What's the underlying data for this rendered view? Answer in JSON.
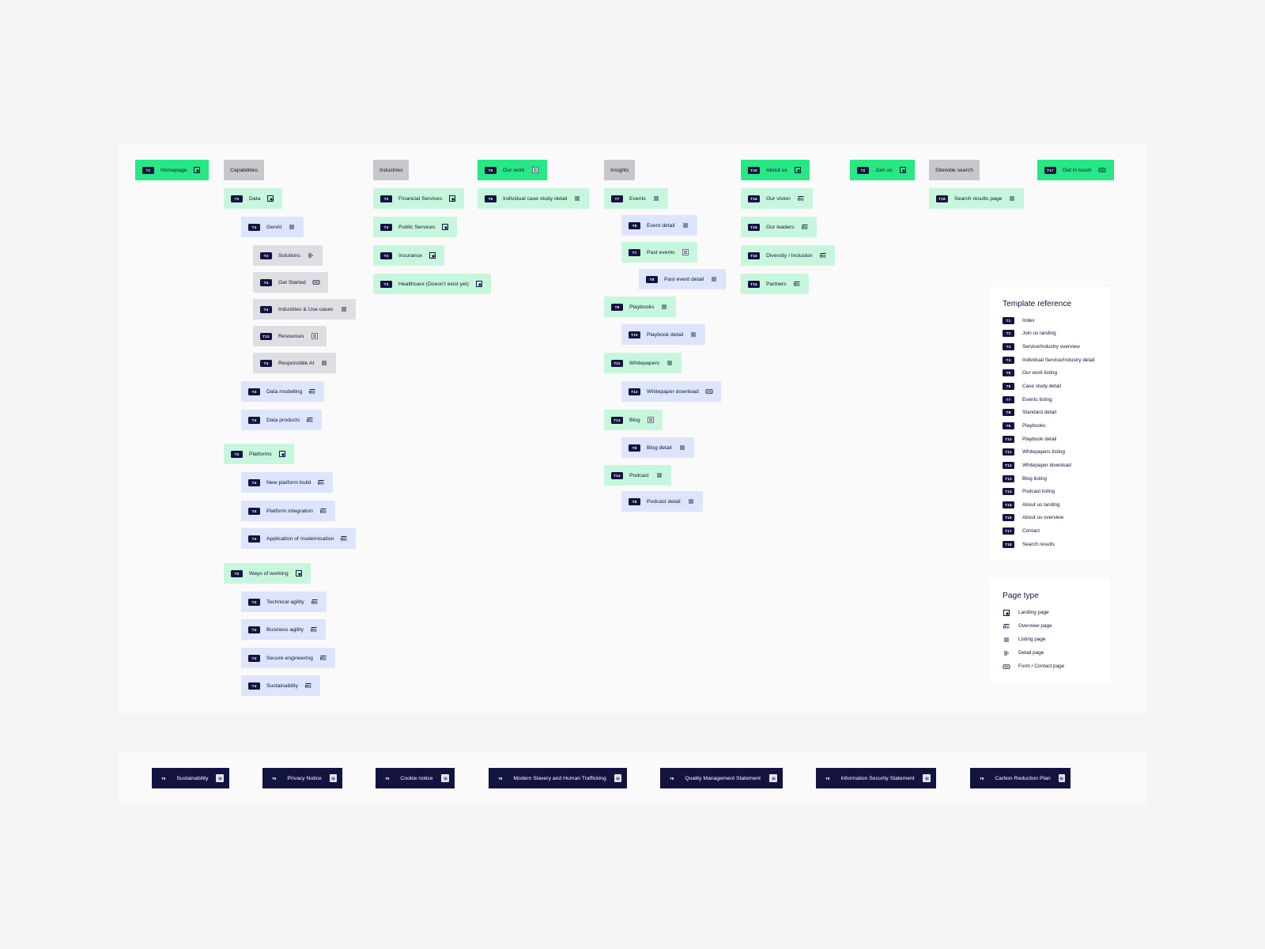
{
  "page_types": {
    "landing": "Landing page",
    "overview": "Overview page",
    "listing": "Listing page",
    "detail": "Detail page",
    "form": "Form / Contact page"
  },
  "sitemap": {
    "nodes": [
      {
        "id": "homepage",
        "code": "T1",
        "label": "Homepage",
        "style": "bright",
        "icon": "landing"
      },
      {
        "id": "capabilities",
        "code": "",
        "label": "Capabilities",
        "style": "header",
        "icon": ""
      },
      {
        "id": "data",
        "code": "T3",
        "label": "Data",
        "style": "mint",
        "icon": "landing"
      },
      {
        "id": "genai",
        "code": "T4",
        "label": "GenAI",
        "style": "blue",
        "icon": "listing"
      },
      {
        "id": "solutions",
        "code": "T4",
        "label": "Solutions",
        "style": "grey",
        "icon": "detail"
      },
      {
        "id": "get-started",
        "code": "T4",
        "label": "Get Started",
        "style": "grey",
        "icon": "form"
      },
      {
        "id": "industries-use-cases",
        "code": "T4",
        "label": "Industries & Use cases",
        "style": "grey",
        "icon": "listing"
      },
      {
        "id": "resources",
        "code": "T12",
        "label": "Resources",
        "style": "grey",
        "icon": "grid"
      },
      {
        "id": "responsible-ai",
        "code": "T4",
        "label": "Responsible AI",
        "style": "grey",
        "icon": "listing"
      },
      {
        "id": "data-modelling",
        "code": "T4",
        "label": "Data modelling",
        "style": "blue",
        "icon": "overview"
      },
      {
        "id": "data-products",
        "code": "T4",
        "label": "Data products",
        "style": "blue",
        "icon": "overview"
      },
      {
        "id": "platforms",
        "code": "T3",
        "label": "Platforms",
        "style": "mint",
        "icon": "landing"
      },
      {
        "id": "new-platform-build",
        "code": "T4",
        "label": "New platform build",
        "style": "blue",
        "icon": "overview"
      },
      {
        "id": "platform-integration",
        "code": "T4",
        "label": "Platform integration",
        "style": "blue",
        "icon": "overview"
      },
      {
        "id": "application-modernisation",
        "code": "T4",
        "label": "Application of modernisation",
        "style": "blue",
        "icon": "overview"
      },
      {
        "id": "ways-of-working",
        "code": "T3",
        "label": "Ways of working",
        "style": "mint",
        "icon": "landing"
      },
      {
        "id": "technical-agility",
        "code": "T4",
        "label": "Technical agility",
        "style": "blue",
        "icon": "overview"
      },
      {
        "id": "business-agility",
        "code": "T4",
        "label": "Business agility",
        "style": "blue",
        "icon": "overview"
      },
      {
        "id": "secure-engineering",
        "code": "T4",
        "label": "Secure engineering",
        "style": "blue",
        "icon": "overview"
      },
      {
        "id": "sustainability",
        "code": "T4",
        "label": "Sustainability",
        "style": "blue",
        "icon": "overview"
      },
      {
        "id": "industries",
        "code": "",
        "label": "Industries",
        "style": "header",
        "icon": ""
      },
      {
        "id": "financial-services",
        "code": "T3",
        "label": "Financial Services",
        "style": "mint",
        "icon": "landing"
      },
      {
        "id": "public-services",
        "code": "T3",
        "label": "Public Services",
        "style": "mint",
        "icon": "landing"
      },
      {
        "id": "insurance",
        "code": "T3",
        "label": "Insurance",
        "style": "mint",
        "icon": "landing"
      },
      {
        "id": "healthcare",
        "code": "T3",
        "label": "Healthcare (Doesn't exist yet)",
        "style": "mint",
        "icon": "landing"
      },
      {
        "id": "our-work",
        "code": "T5",
        "label": "Our work",
        "style": "bright",
        "icon": "grid"
      },
      {
        "id": "case-study-detail",
        "code": "T6",
        "label": "Individual case study detail",
        "style": "mint",
        "icon": "listing"
      },
      {
        "id": "insights",
        "code": "",
        "label": "Insights",
        "style": "header",
        "icon": ""
      },
      {
        "id": "events",
        "code": "T7",
        "label": "Events",
        "style": "mint",
        "icon": "listing"
      },
      {
        "id": "event-detail",
        "code": "T8",
        "label": "Event detail",
        "style": "blue",
        "icon": "listing"
      },
      {
        "id": "past-events",
        "code": "T7",
        "label": "Past events",
        "style": "mint",
        "icon": "grid"
      },
      {
        "id": "past-event-detail",
        "code": "T8",
        "label": "Past event detail",
        "style": "blue",
        "icon": "listing"
      },
      {
        "id": "playbooks",
        "code": "T9",
        "label": "Playbooks",
        "style": "mint",
        "icon": "listing"
      },
      {
        "id": "playbook-detail",
        "code": "T10",
        "label": "Playbook detail",
        "style": "blue",
        "icon": "listing"
      },
      {
        "id": "whitepapers",
        "code": "T11",
        "label": "Whitepapers",
        "style": "mint",
        "icon": "listing"
      },
      {
        "id": "whitepaper-download",
        "code": "T12",
        "label": "Whitepaper download",
        "style": "blue",
        "icon": "form"
      },
      {
        "id": "blog",
        "code": "T13",
        "label": "Blog",
        "style": "mint",
        "icon": "grid"
      },
      {
        "id": "blog-detail",
        "code": "T8",
        "label": "Blog detail",
        "style": "blue",
        "icon": "listing"
      },
      {
        "id": "podcast",
        "code": "T14",
        "label": "Podcast",
        "style": "mint",
        "icon": "listing"
      },
      {
        "id": "podcast-detail",
        "code": "T8",
        "label": "Podcast detail",
        "style": "blue",
        "icon": "listing"
      },
      {
        "id": "about-us",
        "code": "T15",
        "label": "About us",
        "style": "bright",
        "icon": "landing"
      },
      {
        "id": "our-vision",
        "code": "T16",
        "label": "Our vision",
        "style": "mint",
        "icon": "overview"
      },
      {
        "id": "our-leaders",
        "code": "T16",
        "label": "Our leaders",
        "style": "mint",
        "icon": "overview"
      },
      {
        "id": "diversity-inclusion",
        "code": "T16",
        "label": "Diversity / Inclusion",
        "style": "mint",
        "icon": "overview"
      },
      {
        "id": "partners",
        "code": "T16",
        "label": "Partners",
        "style": "mint",
        "icon": "overview"
      },
      {
        "id": "join-us",
        "code": "T2",
        "label": "Join us",
        "style": "bright",
        "icon": "landing"
      },
      {
        "id": "sitewide-search",
        "code": "",
        "label": "Sitewide search",
        "style": "header",
        "icon": ""
      },
      {
        "id": "search-results-page",
        "code": "T18",
        "label": "Search results page",
        "style": "mint",
        "icon": "listing"
      },
      {
        "id": "get-in-touch",
        "code": "T17",
        "label": "Get in touch",
        "style": "bright",
        "icon": "form"
      }
    ]
  },
  "template_reference": {
    "title": "Template reference",
    "items": [
      {
        "code": "T1",
        "label": "Index"
      },
      {
        "code": "T2",
        "label": "Join us landing"
      },
      {
        "code": "T3",
        "label": "Service/Industry overview"
      },
      {
        "code": "T4",
        "label": "Individual Service/Industry detail"
      },
      {
        "code": "T5",
        "label": "Our work listing"
      },
      {
        "code": "T6",
        "label": "Case study detail"
      },
      {
        "code": "T7",
        "label": "Events listing"
      },
      {
        "code": "T8",
        "label": "Standard detail"
      },
      {
        "code": "T9",
        "label": "Playbooks"
      },
      {
        "code": "T10",
        "label": "Playbook detail"
      },
      {
        "code": "T11",
        "label": "Whitepapers listing"
      },
      {
        "code": "T12",
        "label": "Whitepaper download"
      },
      {
        "code": "T13",
        "label": "Blog listing"
      },
      {
        "code": "T14",
        "label": "Podcast listing"
      },
      {
        "code": "T15",
        "label": "About us landing"
      },
      {
        "code": "T16",
        "label": "About us overview"
      },
      {
        "code": "T17",
        "label": "Contact"
      },
      {
        "code": "T18",
        "label": "Search results"
      }
    ]
  },
  "page_type_reference": {
    "title": "Page type",
    "items": [
      {
        "icon": "landing",
        "label": "Landing page"
      },
      {
        "icon": "overview",
        "label": "Overview page"
      },
      {
        "icon": "listing",
        "label": "Listing page"
      },
      {
        "icon": "detail",
        "label": "Detail page"
      },
      {
        "icon": "form",
        "label": "Form / Contact page"
      }
    ]
  },
  "footer_pages": [
    {
      "code": "T8",
      "label": "Sustainability",
      "icon": "listing"
    },
    {
      "code": "T8",
      "label": "Privacy Notice",
      "icon": "listing"
    },
    {
      "code": "T8",
      "label": "Cookie notice",
      "icon": "listing"
    },
    {
      "code": "T8",
      "label": "Modern Slavery and Human Trafficking",
      "icon": "listing"
    },
    {
      "code": "T8",
      "label": "Quality Management Statement",
      "icon": "listing"
    },
    {
      "code": "T8",
      "label": "Information Security Statement",
      "icon": "listing"
    },
    {
      "code": "T8",
      "label": "Carbon Reduction Plan",
      "icon": "listing"
    }
  ],
  "colors": {
    "bright_green": "#27e884",
    "mint": "#c6f7dd",
    "blue": "#dce5fb",
    "grey": "#dedfe2",
    "header_grey": "#c7c8cc",
    "navy": "#131340"
  }
}
